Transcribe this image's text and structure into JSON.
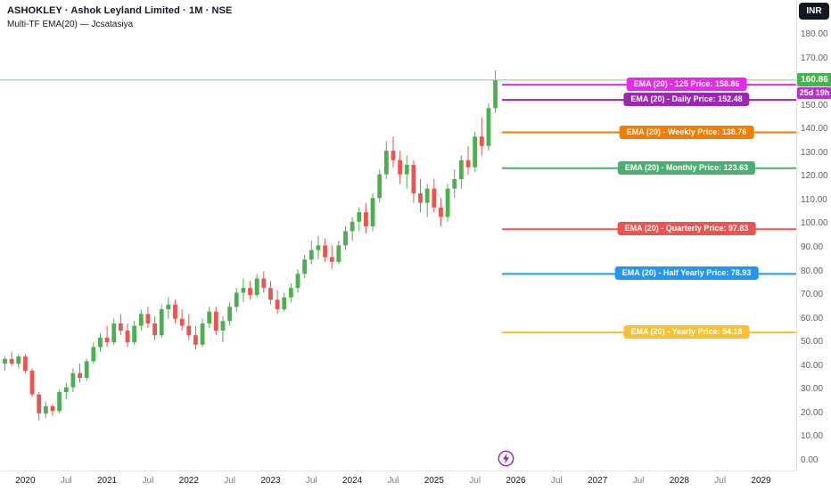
{
  "header": {
    "symbol_title": "ASHOKLEY · Ashok Leyland Limited · 1M · NSE",
    "indicator_title": "Multi-TF EMA(20) — Jcsatasiya"
  },
  "top_right": {
    "currency_label": "INR"
  },
  "price_scale": {
    "current_price_label": "160.86",
    "countdown_label": "25d 19h"
  },
  "colors": {
    "up": "#4caf50",
    "down": "#ef5350",
    "current_price_line": "#81c784",
    "current_price_badge": "#4caf50",
    "countdown_badge": "#b535c9",
    "axis_text": "#5d6069"
  },
  "chart_data": {
    "type": "candlestick",
    "title": "ASHOKLEY · Ashok Leyland Limited · 1M · NSE",
    "symbol": "ASHOKLEY",
    "company": "Ashok Leyland Limited",
    "exchange": "NSE",
    "interval": "1M",
    "currency": "INR",
    "start_month": "2019-10",
    "grid": "off",
    "y_axis": {
      "min": 0,
      "tick_max": 180,
      "tick_step": 10,
      "format": "0.00"
    },
    "x_axis": {
      "labels": [
        {
          "text": "2020",
          "month_index": 3,
          "major": true
        },
        {
          "text": "Jul",
          "month_index": 9,
          "major": false
        },
        {
          "text": "2021",
          "month_index": 15,
          "major": true
        },
        {
          "text": "Jul",
          "month_index": 21,
          "major": false
        },
        {
          "text": "2022",
          "month_index": 27,
          "major": true
        },
        {
          "text": "Jul",
          "month_index": 33,
          "major": false
        },
        {
          "text": "2023",
          "month_index": 39,
          "major": true
        },
        {
          "text": "Jul",
          "month_index": 45,
          "major": false
        },
        {
          "text": "2024",
          "month_index": 51,
          "major": true
        },
        {
          "text": "Jul",
          "month_index": 57,
          "major": false
        },
        {
          "text": "2025",
          "month_index": 63,
          "major": true
        },
        {
          "text": "Jul",
          "month_index": 69,
          "major": false
        },
        {
          "text": "2026",
          "month_index": 75,
          "major": true
        },
        {
          "text": "Jul",
          "month_index": 81,
          "major": false
        },
        {
          "text": "2027",
          "month_index": 87,
          "major": true
        },
        {
          "text": "Jul",
          "month_index": 93,
          "major": false
        },
        {
          "text": "2028",
          "month_index": 99,
          "major": true
        },
        {
          "text": "Jul",
          "month_index": 105,
          "major": false
        },
        {
          "text": "2029",
          "month_index": 111,
          "major": true
        }
      ]
    },
    "candles": [
      [
        41,
        44,
        38,
        43
      ],
      [
        43,
        46,
        40,
        41
      ],
      [
        41,
        45,
        39,
        44
      ],
      [
        44,
        45,
        37,
        38
      ],
      [
        38,
        39,
        27,
        28
      ],
      [
        28,
        29,
        17,
        20
      ],
      [
        20,
        25,
        18,
        23
      ],
      [
        23,
        24,
        19,
        21
      ],
      [
        21,
        30,
        20,
        29
      ],
      [
        29,
        33,
        26,
        31
      ],
      [
        31,
        39,
        29,
        37
      ],
      [
        37,
        41,
        33,
        35
      ],
      [
        35,
        43,
        34,
        42
      ],
      [
        42,
        50,
        41,
        48
      ],
      [
        48,
        54,
        46,
        52
      ],
      [
        52,
        57,
        48,
        50
      ],
      [
        50,
        60,
        49,
        58
      ],
      [
        58,
        62,
        53,
        55
      ],
      [
        55,
        58,
        48,
        50
      ],
      [
        50,
        59,
        49,
        57
      ],
      [
        57,
        64,
        55,
        62
      ],
      [
        62,
        65,
        56,
        58
      ],
      [
        58,
        61,
        51,
        53
      ],
      [
        53,
        66,
        52,
        64
      ],
      [
        64,
        69,
        60,
        66
      ],
      [
        66,
        68,
        58,
        60
      ],
      [
        60,
        64,
        55,
        57
      ],
      [
        57,
        62,
        51,
        53
      ],
      [
        53,
        57,
        47,
        49
      ],
      [
        49,
        60,
        48,
        58
      ],
      [
        58,
        65,
        56,
        63
      ],
      [
        63,
        65,
        53,
        55
      ],
      [
        55,
        61,
        50,
        59
      ],
      [
        59,
        67,
        57,
        65
      ],
      [
        65,
        73,
        63,
        71
      ],
      [
        71,
        77,
        67,
        73
      ],
      [
        73,
        76,
        68,
        70
      ],
      [
        70,
        79,
        69,
        77
      ],
      [
        77,
        80,
        71,
        73
      ],
      [
        73,
        76,
        66,
        68
      ],
      [
        68,
        72,
        62,
        64
      ],
      [
        64,
        71,
        63,
        69
      ],
      [
        69,
        75,
        67,
        73
      ],
      [
        73,
        81,
        71,
        79
      ],
      [
        79,
        87,
        77,
        85
      ],
      [
        85,
        93,
        83,
        89
      ],
      [
        89,
        95,
        85,
        91
      ],
      [
        91,
        94,
        84,
        86
      ],
      [
        86,
        91,
        81,
        84
      ],
      [
        84,
        93,
        83,
        91
      ],
      [
        91,
        99,
        89,
        97
      ],
      [
        97,
        103,
        93,
        101
      ],
      [
        101,
        107,
        97,
        105
      ],
      [
        105,
        109,
        96,
        99
      ],
      [
        99,
        113,
        97,
        111
      ],
      [
        111,
        123,
        109,
        121
      ],
      [
        121,
        135,
        119,
        131
      ],
      [
        131,
        137,
        124,
        127
      ],
      [
        127,
        131,
        117,
        121
      ],
      [
        121,
        129,
        115,
        125
      ],
      [
        125,
        127,
        109,
        113
      ],
      [
        113,
        119,
        105,
        109
      ],
      [
        109,
        117,
        103,
        115
      ],
      [
        115,
        119,
        105,
        107
      ],
      [
        107,
        111,
        99,
        103
      ],
      [
        103,
        117,
        101,
        115
      ],
      [
        115,
        123,
        111,
        119
      ],
      [
        119,
        129,
        115,
        127
      ],
      [
        127,
        133,
        121,
        124
      ],
      [
        124,
        139,
        122,
        137
      ],
      [
        137,
        145,
        129,
        133
      ],
      [
        133,
        151,
        131,
        149
      ],
      [
        149,
        165,
        147,
        160.86
      ]
    ],
    "current_price": 160.86,
    "bar_close_countdown": "25d 19h",
    "ema_levels": [
      {
        "name": "125",
        "label": "EMA (20) - 125 Price: 158.86",
        "price": 158.86,
        "color": "#e928e9"
      },
      {
        "name": "daily",
        "label": "EMA (20) - Daily Price: 152.48",
        "price": 152.48,
        "color": "#9c27b0"
      },
      {
        "name": "weekly",
        "label": "EMA (20) - Weekly Price: 138.76",
        "price": 138.76,
        "color": "#f57c00"
      },
      {
        "name": "monthly",
        "label": "EMA (20) - Monthly Price: 123.63",
        "price": 123.63,
        "color": "#4caf72"
      },
      {
        "name": "quarterly",
        "label": "EMA (20) - Quarterly Price: 97.83",
        "price": 97.83,
        "color": "#ef5350"
      },
      {
        "name": "half-yearly",
        "label": "EMA (20) - Half Yearly Price: 78.93",
        "price": 78.93,
        "color": "#2196f3"
      },
      {
        "name": "yearly",
        "label": "EMA (20) - Yearly Price: 54.18",
        "price": 54.18,
        "color": "#fbc02d"
      }
    ]
  }
}
